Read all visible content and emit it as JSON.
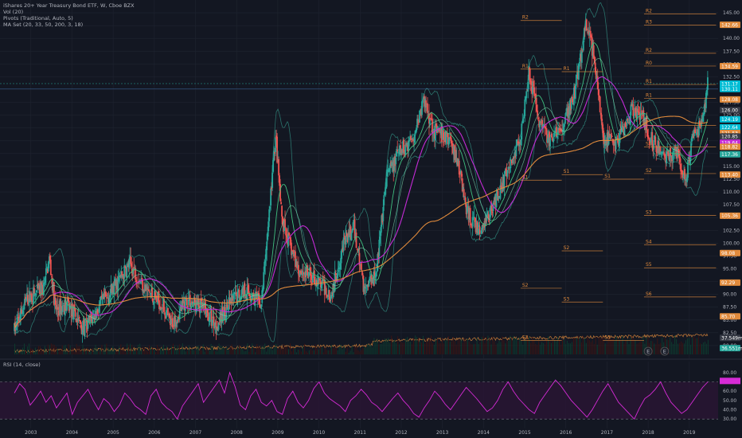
{
  "legend": {
    "symbol": "iShares 20+ Year Treasury Bond ETF, W, Cboe BZX",
    "vol": "Vol (20)",
    "pivots": "Pivots (Traditional, Auto, 5)",
    "ma_set": "MA Set (20, 33, 50, 200, 3, 18)"
  },
  "rsi_legend": "RSI (14, close)",
  "colors": {
    "background": "#131722",
    "up": "#26a69a",
    "down": "#ef5350",
    "grid": "#1f2430",
    "axis_text": "#b2b5be",
    "pivot": "#e08a3c",
    "ma20": "#3fbf7f",
    "ma50": "#c42bd6",
    "ma200": "#e08a3c",
    "bands": "#2e7d74",
    "rsi": "#d62bd6",
    "rsi_fill": "#2a1535"
  },
  "chart_data": [
    {
      "type": "candlestick",
      "title": "iShares 20+ Year Treasury Bond ETF, W, Cboe BZX",
      "x_ticks": [
        "2003",
        "2004",
        "2005",
        "2006",
        "2007",
        "2008",
        "2009",
        "2010",
        "2011",
        "2012",
        "2013",
        "2014",
        "2015",
        "2016",
        "2017",
        "2018",
        "2019"
      ],
      "y_ticks": [
        145.0,
        142.5,
        140.0,
        137.5,
        135.0,
        132.5,
        130.0,
        127.5,
        125.0,
        122.5,
        120.0,
        117.5,
        115.0,
        112.5,
        110.0,
        107.5,
        105.0,
        102.5,
        100.0,
        97.5,
        95.0,
        92.5,
        90.0,
        87.5,
        85.0,
        82.5,
        80.0
      ],
      "ylim": [
        77.5,
        147.5
      ],
      "series_path": [
        {
          "x": 2002.6,
          "y": 83
        },
        {
          "x": 2002.9,
          "y": 89
        },
        {
          "x": 2003.3,
          "y": 91
        },
        {
          "x": 2003.45,
          "y": 97
        },
        {
          "x": 2003.6,
          "y": 87
        },
        {
          "x": 2003.9,
          "y": 88
        },
        {
          "x": 2004.3,
          "y": 83
        },
        {
          "x": 2004.7,
          "y": 88
        },
        {
          "x": 2005.0,
          "y": 91
        },
        {
          "x": 2005.4,
          "y": 96
        },
        {
          "x": 2005.8,
          "y": 91
        },
        {
          "x": 2006.2,
          "y": 88
        },
        {
          "x": 2006.4,
          "y": 84
        },
        {
          "x": 2006.8,
          "y": 89
        },
        {
          "x": 2007.2,
          "y": 87
        },
        {
          "x": 2007.5,
          "y": 84
        },
        {
          "x": 2007.9,
          "y": 89
        },
        {
          "x": 2008.2,
          "y": 91
        },
        {
          "x": 2008.6,
          "y": 88
        },
        {
          "x": 2008.95,
          "y": 121
        },
        {
          "x": 2009.1,
          "y": 104
        },
        {
          "x": 2009.5,
          "y": 95
        },
        {
          "x": 2009.9,
          "y": 93
        },
        {
          "x": 2010.3,
          "y": 90
        },
        {
          "x": 2010.6,
          "y": 100
        },
        {
          "x": 2010.85,
          "y": 103
        },
        {
          "x": 2011.1,
          "y": 91
        },
        {
          "x": 2011.4,
          "y": 95
        },
        {
          "x": 2011.65,
          "y": 113
        },
        {
          "x": 2011.9,
          "y": 117
        },
        {
          "x": 2012.3,
          "y": 121
        },
        {
          "x": 2012.55,
          "y": 128
        },
        {
          "x": 2012.8,
          "y": 122
        },
        {
          "x": 2013.2,
          "y": 120
        },
        {
          "x": 2013.4,
          "y": 115
        },
        {
          "x": 2013.6,
          "y": 106
        },
        {
          "x": 2013.9,
          "y": 102
        },
        {
          "x": 2014.2,
          "y": 107
        },
        {
          "x": 2014.6,
          "y": 114
        },
        {
          "x": 2014.9,
          "y": 121
        },
        {
          "x": 2015.1,
          "y": 134
        },
        {
          "x": 2015.35,
          "y": 124
        },
        {
          "x": 2015.6,
          "y": 120
        },
        {
          "x": 2015.9,
          "y": 122
        },
        {
          "x": 2016.2,
          "y": 129
        },
        {
          "x": 2016.5,
          "y": 143
        },
        {
          "x": 2016.7,
          "y": 136
        },
        {
          "x": 2016.9,
          "y": 121
        },
        {
          "x": 2017.2,
          "y": 119
        },
        {
          "x": 2017.6,
          "y": 126
        },
        {
          "x": 2017.9,
          "y": 124
        },
        {
          "x": 2018.1,
          "y": 120
        },
        {
          "x": 2018.4,
          "y": 117
        },
        {
          "x": 2018.7,
          "y": 118
        },
        {
          "x": 2018.9,
          "y": 112
        },
        {
          "x": 2019.1,
          "y": 121
        },
        {
          "x": 2019.3,
          "y": 123
        },
        {
          "x": 2019.45,
          "y": 131.5
        }
      ]
    },
    {
      "type": "line",
      "title": "RSI (14, close)",
      "ylim": [
        25,
        85
      ],
      "y_ticks": [
        80.0,
        70.0,
        60.0,
        50.0,
        40.0,
        30.0
      ],
      "levels": [
        70,
        30
      ],
      "values": [
        58,
        68,
        62,
        45,
        52,
        60,
        48,
        55,
        42,
        50,
        58,
        35,
        48,
        55,
        62,
        50,
        40,
        52,
        47,
        38,
        45,
        58,
        52,
        44,
        40,
        35,
        55,
        62,
        48,
        42,
        38,
        30,
        44,
        52,
        60,
        68,
        48,
        56,
        64,
        72,
        58,
        80,
        65,
        45,
        40,
        55,
        62,
        48,
        44,
        50,
        38,
        35,
        52,
        60,
        48,
        42,
        50,
        63,
        70,
        58,
        52,
        48,
        44,
        38,
        50,
        55,
        62,
        56,
        48,
        44,
        38,
        45,
        52,
        58,
        50,
        44,
        36,
        32,
        42,
        50,
        60,
        54,
        46,
        40,
        48,
        56,
        64,
        58,
        52,
        45,
        38,
        42,
        50,
        62,
        70,
        60,
        52,
        46,
        40,
        36,
        48,
        56,
        64,
        72,
        66,
        58,
        50,
        44,
        38,
        32,
        40,
        50,
        60,
        68,
        58,
        48,
        42,
        36,
        30,
        42,
        52,
        56,
        62,
        70,
        58,
        48,
        42,
        36,
        40,
        48,
        56,
        64,
        70
      ]
    }
  ],
  "price_labels": [
    {
      "text": "142.66",
      "kind": "pivot",
      "price": 142.66
    },
    {
      "text": "134.59",
      "kind": "pivot",
      "price": 134.59
    },
    {
      "text": "131.17",
      "kind": "teal",
      "price": 131.17
    },
    {
      "text": "130.11",
      "kind": "teal",
      "price": 130.11
    },
    {
      "text": "128.08",
      "kind": "pivot",
      "price": 128.08
    },
    {
      "text": "126.00",
      "kind": "plain",
      "price": 126.0
    },
    {
      "text": "124.19",
      "kind": "teal",
      "price": 124.19
    },
    {
      "text": "122.64",
      "kind": "teal",
      "price": 122.64
    },
    {
      "text": "121.53",
      "kind": "pivot",
      "price": 121.53
    },
    {
      "text": "120.85",
      "kind": "plain",
      "price": 120.85
    },
    {
      "text": "119.64",
      "kind": "magenta",
      "price": 119.64
    },
    {
      "text": "118.82",
      "kind": "pivot",
      "price": 118.82
    },
    {
      "text": "117.36",
      "kind": "green",
      "price": 117.36
    },
    {
      "text": "113.40",
      "kind": "pivot",
      "price": 113.4
    },
    {
      "text": "105.36",
      "kind": "pivot",
      "price": 105.36
    },
    {
      "text": "98.08",
      "kind": "pivot",
      "price": 98.08
    },
    {
      "text": "92.29",
      "kind": "pivot",
      "price": 92.29
    },
    {
      "text": "85.70",
      "kind": "pivot",
      "price": 85.7
    },
    {
      "text": "37.549m",
      "kind": "plain",
      "price": 81.5
    },
    {
      "text": "36.551m",
      "kind": "green",
      "price": 79.5
    }
  ],
  "pivot_levels": [
    {
      "label": "R2",
      "start": 2014.9,
      "end": 2015.9,
      "price": 143.5
    },
    {
      "label": "R1",
      "start": 2014.9,
      "end": 2015.9,
      "price": 134.0
    },
    {
      "label": "S1",
      "start": 2014.9,
      "end": 2015.9,
      "price": 112.3
    },
    {
      "label": "S2",
      "start": 2014.9,
      "end": 2015.9,
      "price": 91.2
    },
    {
      "label": "S3",
      "start": 2014.9,
      "end": 2015.9,
      "price": 81.0
    },
    {
      "label": "R1",
      "start": 2015.9,
      "end": 2016.9,
      "price": 133.5
    },
    {
      "label": "S1",
      "start": 2015.9,
      "end": 2016.9,
      "price": 113.4
    },
    {
      "label": "S2",
      "start": 2015.9,
      "end": 2016.9,
      "price": 98.5
    },
    {
      "label": "S3",
      "start": 2015.9,
      "end": 2016.9,
      "price": 88.5
    },
    {
      "label": "S1",
      "start": 2016.9,
      "end": 2017.9,
      "price": 112.5
    },
    {
      "label": "S3",
      "start": 2016.9,
      "end": 2017.9,
      "price": 81.0
    },
    {
      "label": "R2",
      "start": 2017.9,
      "end": 2019.65,
      "price": 144.8
    },
    {
      "label": "R3",
      "start": 2017.9,
      "end": 2019.65,
      "price": 142.6
    },
    {
      "label": "R2",
      "start": 2017.9,
      "end": 2019.65,
      "price": 137.1
    },
    {
      "label": "R0",
      "start": 2017.9,
      "end": 2019.65,
      "price": 134.6
    },
    {
      "label": "R1",
      "start": 2017.9,
      "end": 2019.65,
      "price": 131.0
    },
    {
      "label": "R1",
      "start": 2017.9,
      "end": 2019.65,
      "price": 128.3
    },
    {
      "label": "P",
      "start": 2017.9,
      "end": 2019.65,
      "price": 123.0
    },
    {
      "label": "S1",
      "start": 2017.9,
      "end": 2019.65,
      "price": 118.8
    },
    {
      "label": "S2",
      "start": 2017.9,
      "end": 2019.65,
      "price": 113.6
    },
    {
      "label": "S3",
      "start": 2017.9,
      "end": 2019.65,
      "price": 105.4
    },
    {
      "label": "S4",
      "start": 2017.9,
      "end": 2019.65,
      "price": 99.7
    },
    {
      "label": "S5",
      "start": 2017.9,
      "end": 2019.65,
      "price": 95.2
    },
    {
      "label": "S6",
      "start": 2017.9,
      "end": 2019.65,
      "price": 89.5
    }
  ],
  "events": [
    "E",
    "E"
  ]
}
